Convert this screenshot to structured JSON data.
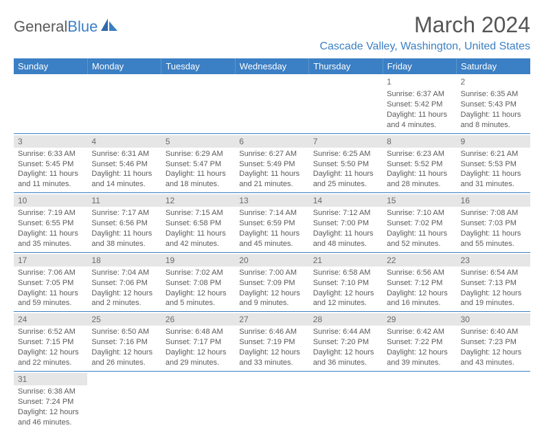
{
  "brand": {
    "part1": "General",
    "part2": "Blue"
  },
  "title": "March 2024",
  "location": "Cascade Valley, Washington, United States",
  "weekdays": [
    "Sunday",
    "Monday",
    "Tuesday",
    "Wednesday",
    "Thursday",
    "Friday",
    "Saturday"
  ],
  "colors": {
    "header_bg": "#3b7fc4",
    "header_text": "#ffffff",
    "grid_line": "#3b7fc4",
    "daynum_bg": "#e6e6e6",
    "body_text": "#5a5a5a",
    "location_text": "#3b7fc4"
  },
  "weeks": [
    [
      null,
      null,
      null,
      null,
      null,
      {
        "n": "1",
        "sunrise": "Sunrise: 6:37 AM",
        "sunset": "Sunset: 5:42 PM",
        "daylight": "Daylight: 11 hours and 4 minutes."
      },
      {
        "n": "2",
        "sunrise": "Sunrise: 6:35 AM",
        "sunset": "Sunset: 5:43 PM",
        "daylight": "Daylight: 11 hours and 8 minutes."
      }
    ],
    [
      {
        "n": "3",
        "sunrise": "Sunrise: 6:33 AM",
        "sunset": "Sunset: 5:45 PM",
        "daylight": "Daylight: 11 hours and 11 minutes."
      },
      {
        "n": "4",
        "sunrise": "Sunrise: 6:31 AM",
        "sunset": "Sunset: 5:46 PM",
        "daylight": "Daylight: 11 hours and 14 minutes."
      },
      {
        "n": "5",
        "sunrise": "Sunrise: 6:29 AM",
        "sunset": "Sunset: 5:47 PM",
        "daylight": "Daylight: 11 hours and 18 minutes."
      },
      {
        "n": "6",
        "sunrise": "Sunrise: 6:27 AM",
        "sunset": "Sunset: 5:49 PM",
        "daylight": "Daylight: 11 hours and 21 minutes."
      },
      {
        "n": "7",
        "sunrise": "Sunrise: 6:25 AM",
        "sunset": "Sunset: 5:50 PM",
        "daylight": "Daylight: 11 hours and 25 minutes."
      },
      {
        "n": "8",
        "sunrise": "Sunrise: 6:23 AM",
        "sunset": "Sunset: 5:52 PM",
        "daylight": "Daylight: 11 hours and 28 minutes."
      },
      {
        "n": "9",
        "sunrise": "Sunrise: 6:21 AM",
        "sunset": "Sunset: 5:53 PM",
        "daylight": "Daylight: 11 hours and 31 minutes."
      }
    ],
    [
      {
        "n": "10",
        "sunrise": "Sunrise: 7:19 AM",
        "sunset": "Sunset: 6:55 PM",
        "daylight": "Daylight: 11 hours and 35 minutes."
      },
      {
        "n": "11",
        "sunrise": "Sunrise: 7:17 AM",
        "sunset": "Sunset: 6:56 PM",
        "daylight": "Daylight: 11 hours and 38 minutes."
      },
      {
        "n": "12",
        "sunrise": "Sunrise: 7:15 AM",
        "sunset": "Sunset: 6:58 PM",
        "daylight": "Daylight: 11 hours and 42 minutes."
      },
      {
        "n": "13",
        "sunrise": "Sunrise: 7:14 AM",
        "sunset": "Sunset: 6:59 PM",
        "daylight": "Daylight: 11 hours and 45 minutes."
      },
      {
        "n": "14",
        "sunrise": "Sunrise: 7:12 AM",
        "sunset": "Sunset: 7:00 PM",
        "daylight": "Daylight: 11 hours and 48 minutes."
      },
      {
        "n": "15",
        "sunrise": "Sunrise: 7:10 AM",
        "sunset": "Sunset: 7:02 PM",
        "daylight": "Daylight: 11 hours and 52 minutes."
      },
      {
        "n": "16",
        "sunrise": "Sunrise: 7:08 AM",
        "sunset": "Sunset: 7:03 PM",
        "daylight": "Daylight: 11 hours and 55 minutes."
      }
    ],
    [
      {
        "n": "17",
        "sunrise": "Sunrise: 7:06 AM",
        "sunset": "Sunset: 7:05 PM",
        "daylight": "Daylight: 11 hours and 59 minutes."
      },
      {
        "n": "18",
        "sunrise": "Sunrise: 7:04 AM",
        "sunset": "Sunset: 7:06 PM",
        "daylight": "Daylight: 12 hours and 2 minutes."
      },
      {
        "n": "19",
        "sunrise": "Sunrise: 7:02 AM",
        "sunset": "Sunset: 7:08 PM",
        "daylight": "Daylight: 12 hours and 5 minutes."
      },
      {
        "n": "20",
        "sunrise": "Sunrise: 7:00 AM",
        "sunset": "Sunset: 7:09 PM",
        "daylight": "Daylight: 12 hours and 9 minutes."
      },
      {
        "n": "21",
        "sunrise": "Sunrise: 6:58 AM",
        "sunset": "Sunset: 7:10 PM",
        "daylight": "Daylight: 12 hours and 12 minutes."
      },
      {
        "n": "22",
        "sunrise": "Sunrise: 6:56 AM",
        "sunset": "Sunset: 7:12 PM",
        "daylight": "Daylight: 12 hours and 16 minutes."
      },
      {
        "n": "23",
        "sunrise": "Sunrise: 6:54 AM",
        "sunset": "Sunset: 7:13 PM",
        "daylight": "Daylight: 12 hours and 19 minutes."
      }
    ],
    [
      {
        "n": "24",
        "sunrise": "Sunrise: 6:52 AM",
        "sunset": "Sunset: 7:15 PM",
        "daylight": "Daylight: 12 hours and 22 minutes."
      },
      {
        "n": "25",
        "sunrise": "Sunrise: 6:50 AM",
        "sunset": "Sunset: 7:16 PM",
        "daylight": "Daylight: 12 hours and 26 minutes."
      },
      {
        "n": "26",
        "sunrise": "Sunrise: 6:48 AM",
        "sunset": "Sunset: 7:17 PM",
        "daylight": "Daylight: 12 hours and 29 minutes."
      },
      {
        "n": "27",
        "sunrise": "Sunrise: 6:46 AM",
        "sunset": "Sunset: 7:19 PM",
        "daylight": "Daylight: 12 hours and 33 minutes."
      },
      {
        "n": "28",
        "sunrise": "Sunrise: 6:44 AM",
        "sunset": "Sunset: 7:20 PM",
        "daylight": "Daylight: 12 hours and 36 minutes."
      },
      {
        "n": "29",
        "sunrise": "Sunrise: 6:42 AM",
        "sunset": "Sunset: 7:22 PM",
        "daylight": "Daylight: 12 hours and 39 minutes."
      },
      {
        "n": "30",
        "sunrise": "Sunrise: 6:40 AM",
        "sunset": "Sunset: 7:23 PM",
        "daylight": "Daylight: 12 hours and 43 minutes."
      }
    ],
    [
      {
        "n": "31",
        "sunrise": "Sunrise: 6:38 AM",
        "sunset": "Sunset: 7:24 PM",
        "daylight": "Daylight: 12 hours and 46 minutes."
      },
      null,
      null,
      null,
      null,
      null,
      null
    ]
  ]
}
